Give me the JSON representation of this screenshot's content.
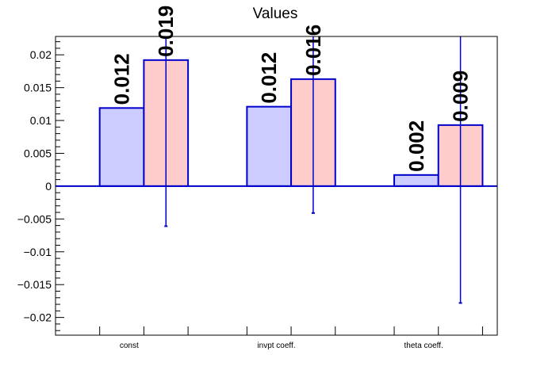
{
  "chart_data": {
    "type": "bar",
    "title": "Values",
    "xlabel": "",
    "ylabel": "",
    "categories": [
      "const",
      "invpt coeff.",
      "theta coeff."
    ],
    "series": [
      {
        "values": [
          0.0119,
          0.0121,
          0.0017
        ],
        "labels": [
          "0.012",
          "0.012",
          "0.002"
        ],
        "fill": "#ccccff",
        "stroke": "#0000cc"
      },
      {
        "values": [
          0.0192,
          0.0163,
          0.0093
        ],
        "labels": [
          "0.019",
          "0.016",
          "0.009"
        ],
        "fill": "#ffcccc",
        "stroke": "#0000cc",
        "error_low": [
          -0.0061,
          -0.0041,
          -0.0178
        ],
        "error_high": [
          0.0228,
          0.0228,
          0.0228
        ]
      }
    ],
    "ylim": [
      -0.0227,
      0.0228
    ],
    "yticks": [
      "0.02",
      "0.015",
      "0.01",
      "0.005",
      "0",
      "−0.005",
      "−0.01",
      "−0.015",
      "−0.02"
    ],
    "ytick_values": [
      0.02,
      0.015,
      0.01,
      0.005,
      0,
      -0.005,
      -0.01,
      -0.015,
      -0.02
    ],
    "grid": false,
    "legend": "none"
  }
}
